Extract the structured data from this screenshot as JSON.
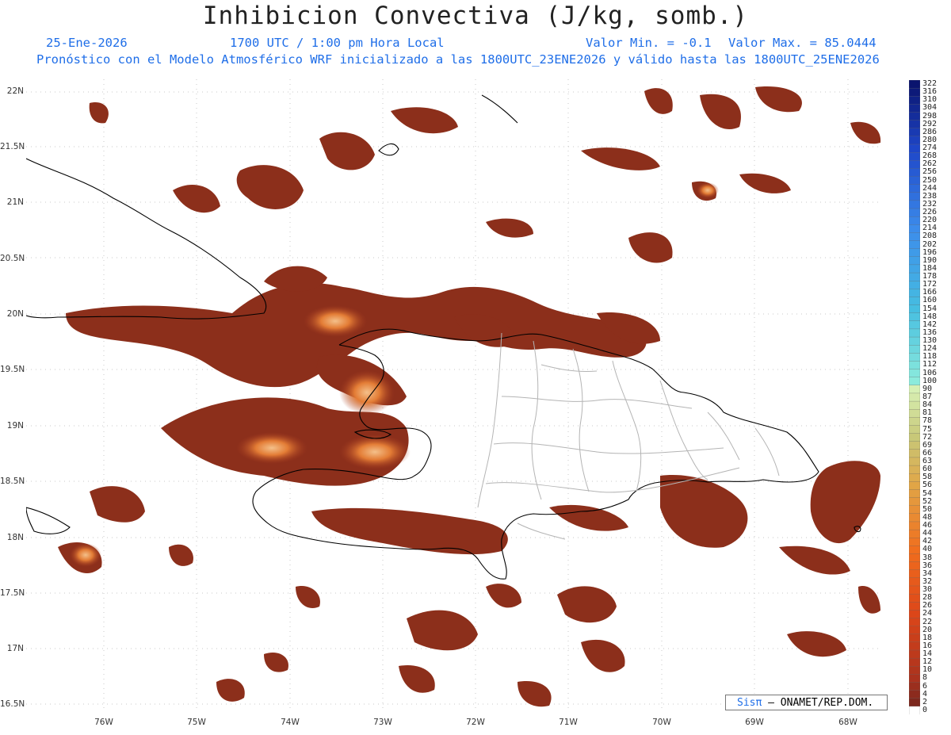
{
  "header": {
    "title": "Inhibicion Convectiva (J/kg, somb.)",
    "date": "25-Ene-2026",
    "time": "1700 UTC / 1:00 pm Hora Local",
    "valmin": "Valor Min. = -0.1",
    "valmax": "Valor Max. = 85.0444",
    "forecast": "Pronóstico con el Modelo Atmosférico WRF inicializado a las 1800UTC_23ENE2026 y válido hasta las  1800UTC_25ENE2026"
  },
  "axes": {
    "lat_labels": [
      "22N",
      "21.5N",
      "21N",
      "20.5N",
      "20N",
      "19.5N",
      "19N",
      "18.5N",
      "18N",
      "17.5N",
      "17N",
      "16.5N"
    ],
    "lon_labels": [
      "76W",
      "75W",
      "74W",
      "73W",
      "72W",
      "71W",
      "70W",
      "69W",
      "68W"
    ]
  },
  "colorbar": {
    "labels": [
      "322",
      "316",
      "310",
      "304",
      "298",
      "292",
      "286",
      "280",
      "274",
      "268",
      "262",
      "256",
      "250",
      "244",
      "238",
      "232",
      "226",
      "220",
      "214",
      "208",
      "202",
      "196",
      "190",
      "184",
      "178",
      "172",
      "166",
      "160",
      "154",
      "148",
      "142",
      "136",
      "130",
      "124",
      "118",
      "112",
      "106",
      "100",
      "90",
      "87",
      "84",
      "81",
      "78",
      "75",
      "72",
      "69",
      "66",
      "63",
      "60",
      "58",
      "56",
      "54",
      "52",
      "50",
      "48",
      "46",
      "44",
      "42",
      "40",
      "38",
      "36",
      "34",
      "32",
      "30",
      "28",
      "26",
      "24",
      "22",
      "20",
      "18",
      "16",
      "14",
      "12",
      "10",
      "8",
      "6",
      "4",
      "2",
      "0"
    ]
  },
  "credit": {
    "brand": "Sisπ",
    "text": "– ONAMET/REP.DOM."
  },
  "colors": {
    "field_low": "#8a2e1a",
    "field_mid": "#c85a22",
    "field_high": "#f0b070",
    "border": "#000000",
    "provinces": "#b4b4b4",
    "text_blue": "#1f6ee8"
  }
}
